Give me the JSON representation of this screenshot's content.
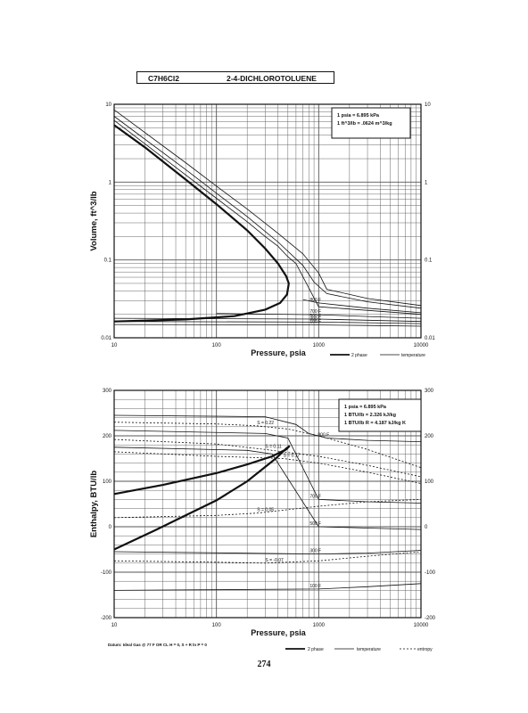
{
  "header": {
    "formula": "C7H6Cl2",
    "name": "2-4-DICHLOROTOLUENE"
  },
  "page_number": "274",
  "footnote": "Datum: Ideal Gas @ 77 F OR CL  H = 0,  S + R ln P = 0",
  "chart_data": [
    {
      "type": "line",
      "xlabel": "Pressure,  psia",
      "ylabel": "Volume, ft^3/lb",
      "x_scale": "log",
      "y_scale": "log",
      "xlim": [
        10,
        10000
      ],
      "ylim": [
        0.01,
        10
      ],
      "x_ticks": [
        "10",
        "100",
        "1000",
        "10000"
      ],
      "y_ticks_left": [
        "10",
        "1",
        "0.1",
        "0.01"
      ],
      "y_ticks_right": [
        "10",
        "1",
        "0.1",
        "0.01"
      ],
      "grid": true,
      "conversion_box": [
        "1 psia  =  6.895 kPa",
        "1 ft^3/lb  =  .0624 m^3/kg"
      ],
      "legend": [
        {
          "name": "2 phase",
          "style": "heavy"
        },
        {
          "name": "temperature",
          "style": "thin"
        }
      ],
      "series": [
        {
          "name": "2 phase",
          "style": "heavy",
          "points": [
            [
              10,
              5.4
            ],
            [
              20,
              2.8
            ],
            [
              50,
              1.08
            ],
            [
              100,
              0.52
            ],
            [
              200,
              0.24
            ],
            [
              300,
              0.14
            ],
            [
              400,
              0.09
            ],
            [
              480,
              0.062
            ],
            [
              510,
              0.05
            ],
            [
              490,
              0.036
            ],
            [
              420,
              0.028
            ],
            [
              300,
              0.023
            ],
            [
              150,
              0.019
            ],
            [
              50,
              0.0172
            ],
            [
              10,
              0.0162
            ]
          ]
        },
        {
          "name": "",
          "style": "thin",
          "points": [
            [
              10,
              7
            ],
            [
              50,
              1.45
            ],
            [
              100,
              0.72
            ],
            [
              200,
              0.36
            ],
            [
              400,
              0.17
            ],
            [
              700,
              0.085
            ],
            [
              900,
              0.052
            ],
            [
              1200,
              0.037
            ],
            [
              3000,
              0.029
            ],
            [
              10000,
              0.024
            ]
          ]
        },
        {
          "name": "",
          "style": "thin",
          "points": [
            [
              10,
              8.5
            ],
            [
              50,
              1.78
            ],
            [
              100,
              0.89
            ],
            [
              200,
              0.45
            ],
            [
              400,
              0.22
            ],
            [
              700,
              0.12
            ],
            [
              1000,
              0.068
            ],
            [
              1200,
              0.042
            ],
            [
              3000,
              0.032
            ],
            [
              10000,
              0.026
            ]
          ]
        },
        {
          "name": "",
          "style": "thin",
          "points": [
            [
              10,
              6.2
            ],
            [
              50,
              1.24
            ],
            [
              100,
              0.62
            ],
            [
              200,
              0.31
            ],
            [
              300,
              0.2
            ],
            [
              400,
              0.15
            ],
            [
              500,
              0.11
            ],
            [
              600,
              0.09
            ],
            [
              1000,
              0.025
            ],
            [
              10000,
              0.02
            ]
          ]
        }
      ],
      "temperature_lines": [
        {
          "label": "800 F",
          "points": [
            [
              700,
              0.031
            ],
            [
              1000,
              0.028
            ],
            [
              3000,
              0.024
            ],
            [
              10000,
              0.021
            ]
          ]
        },
        {
          "label": "700 F",
          "points": [
            [
              100,
              0.0205
            ],
            [
              1000,
              0.0198
            ],
            [
              3000,
              0.0188
            ],
            [
              10000,
              0.0178
            ]
          ]
        },
        {
          "label": "500 F",
          "points": [
            [
              10,
              0.0178
            ],
            [
              1000,
              0.0174
            ],
            [
              3000,
              0.0168
            ],
            [
              10000,
              0.0162
            ]
          ]
        },
        {
          "label": "300 F",
          "points": [
            [
              10,
              0.0162
            ],
            [
              1000,
              0.0159
            ],
            [
              3000,
              0.0156
            ],
            [
              10000,
              0.0152
            ]
          ]
        },
        {
          "label": "100 F",
          "points": [
            [
              10,
              0.0148
            ],
            [
              1000,
              0.0146
            ],
            [
              3000,
              0.0144
            ],
            [
              10000,
              0.0141
            ]
          ]
        }
      ]
    },
    {
      "type": "line",
      "xlabel": "Pressure,  psia",
      "ylabel": "Enthalpy, BTU/lb",
      "x_scale": "log",
      "y_scale": "linear",
      "xlim": [
        10,
        10000
      ],
      "ylim": [
        -200,
        300
      ],
      "x_ticks": [
        "10",
        "100",
        "1000",
        "10000"
      ],
      "y_ticks_left": [
        "300",
        "200",
        "100",
        "0",
        "-100",
        "-200"
      ],
      "y_ticks_right": [
        "300",
        "200",
        "100",
        "0",
        "-100",
        "-200"
      ],
      "grid": true,
      "conversion_box": [
        "1 psia  =  6.895 kPa",
        "1 BTU/lb  =  2.326 kJ/kg",
        "1 BTU/lb R  =  4.187 kJ/kg K"
      ],
      "legend": [
        {
          "name": "2 phase",
          "style": "heavy"
        },
        {
          "name": "temperature",
          "style": "thin"
        },
        {
          "name": "entropy",
          "style": "dotted"
        }
      ],
      "series": [
        {
          "name": "2 phase",
          "style": "heavy",
          "points": [
            [
              10,
              72
            ],
            [
              30,
              92
            ],
            [
              100,
              118
            ],
            [
              200,
              137
            ],
            [
              350,
              155
            ],
            [
              480,
              170
            ],
            [
              520,
              178
            ],
            [
              480,
              172
            ],
            [
              380,
              150
            ],
            [
              200,
              100
            ],
            [
              100,
              58
            ],
            [
              50,
              25
            ],
            [
              25,
              -8
            ],
            [
              10,
              -50
            ]
          ]
        }
      ],
      "temperature_lines": [
        {
          "label": "800 F",
          "points": [
            [
              10,
              245
            ],
            [
              300,
              242
            ],
            [
              600,
              225
            ],
            [
              800,
              205
            ],
            [
              1200,
              195
            ],
            [
              3000,
              190
            ],
            [
              10000,
              187
            ]
          ]
        },
        {
          "label": "700 F",
          "points": [
            [
              10,
              212
            ],
            [
              300,
              205
            ],
            [
              500,
              195
            ],
            [
              1000,
              60
            ],
            [
              3000,
              55
            ],
            [
              10000,
              52
            ]
          ]
        },
        {
          "label": "500 F",
          "points": [
            [
              10,
              175
            ],
            [
              200,
              168
            ],
            [
              350,
              160
            ],
            [
              1000,
              0
            ],
            [
              3000,
              -3
            ],
            [
              10000,
              -6
            ]
          ]
        },
        {
          "label": "300 F",
          "points": [
            [
              10,
              -55
            ],
            [
              1000,
              -60
            ],
            [
              3000,
              -58
            ],
            [
              10000,
              -52
            ]
          ]
        },
        {
          "label": "100 F",
          "points": [
            [
              10,
              -140
            ],
            [
              1000,
              -137
            ],
            [
              3000,
              -132
            ],
            [
              10000,
              -125
            ]
          ]
        }
      ],
      "entropy_lines": [
        {
          "label": "S = 0.22",
          "points": [
            [
              10,
              230
            ],
            [
              100,
              226
            ],
            [
              250,
              222
            ],
            [
              500,
              215
            ],
            [
              1000,
              200
            ],
            [
              3000,
              170
            ],
            [
              10000,
              130
            ]
          ]
        },
        {
          "label": "S = 0.11",
          "points": [
            [
              10,
              192
            ],
            [
              100,
              182
            ],
            [
              300,
              170
            ],
            [
              1000,
              155
            ],
            [
              3000,
              135
            ],
            [
              10000,
              110
            ]
          ]
        },
        {
          "label": "S = 0.17",
          "points": [
            [
              10,
              165
            ],
            [
              100,
              155
            ],
            [
              450,
              150
            ],
            [
              1000,
              140
            ],
            [
              3000,
              120
            ],
            [
              10000,
              95
            ]
          ]
        },
        {
          "label": "S = 0.05",
          "points": [
            [
              10,
              20
            ],
            [
              100,
              25
            ],
            [
              250,
              30
            ],
            [
              1000,
              45
            ],
            [
              3000,
              55
            ],
            [
              10000,
              60
            ]
          ]
        },
        {
          "label": "S = -0.07",
          "points": [
            [
              10,
              -75
            ],
            [
              100,
              -78
            ],
            [
              300,
              -80
            ],
            [
              1000,
              -75
            ],
            [
              3000,
              -65
            ],
            [
              10000,
              -55
            ]
          ]
        }
      ]
    }
  ]
}
